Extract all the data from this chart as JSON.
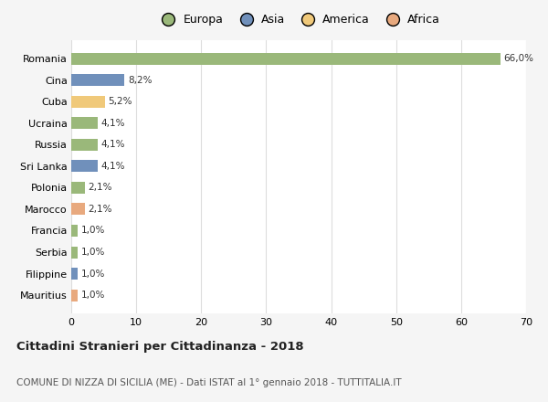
{
  "categories": [
    "Mauritius",
    "Filippine",
    "Serbia",
    "Francia",
    "Marocco",
    "Polonia",
    "Sri Lanka",
    "Russia",
    "Ucraina",
    "Cuba",
    "Cina",
    "Romania"
  ],
  "values": [
    1.0,
    1.0,
    1.0,
    1.0,
    2.1,
    2.1,
    4.1,
    4.1,
    4.1,
    5.2,
    8.2,
    66.0
  ],
  "labels": [
    "1,0%",
    "1,0%",
    "1,0%",
    "1,0%",
    "2,1%",
    "2,1%",
    "4,1%",
    "4,1%",
    "4,1%",
    "5,2%",
    "8,2%",
    "66,0%"
  ],
  "colors": [
    "#e8a97e",
    "#7090bb",
    "#9ab87a",
    "#9ab87a",
    "#e8a97e",
    "#9ab87a",
    "#7090bb",
    "#9ab87a",
    "#9ab87a",
    "#f0c97a",
    "#7090bb",
    "#9ab87a"
  ],
  "continent_colors": {
    "Europa": "#9ab87a",
    "Asia": "#7090bb",
    "America": "#f0c97a",
    "Africa": "#e8a97e"
  },
  "title": "Cittadini Stranieri per Cittadinanza - 2018",
  "subtitle": "COMUNE DI NIZZA DI SICILIA (ME) - Dati ISTAT al 1° gennaio 2018 - TUTTITALIA.IT",
  "xlim": [
    0,
    70
  ],
  "xticks": [
    0,
    10,
    20,
    30,
    40,
    50,
    60,
    70
  ],
  "background_color": "#f5f5f5",
  "plot_bg": "#ffffff",
  "grid_color": "#dddddd",
  "bar_height": 0.55
}
